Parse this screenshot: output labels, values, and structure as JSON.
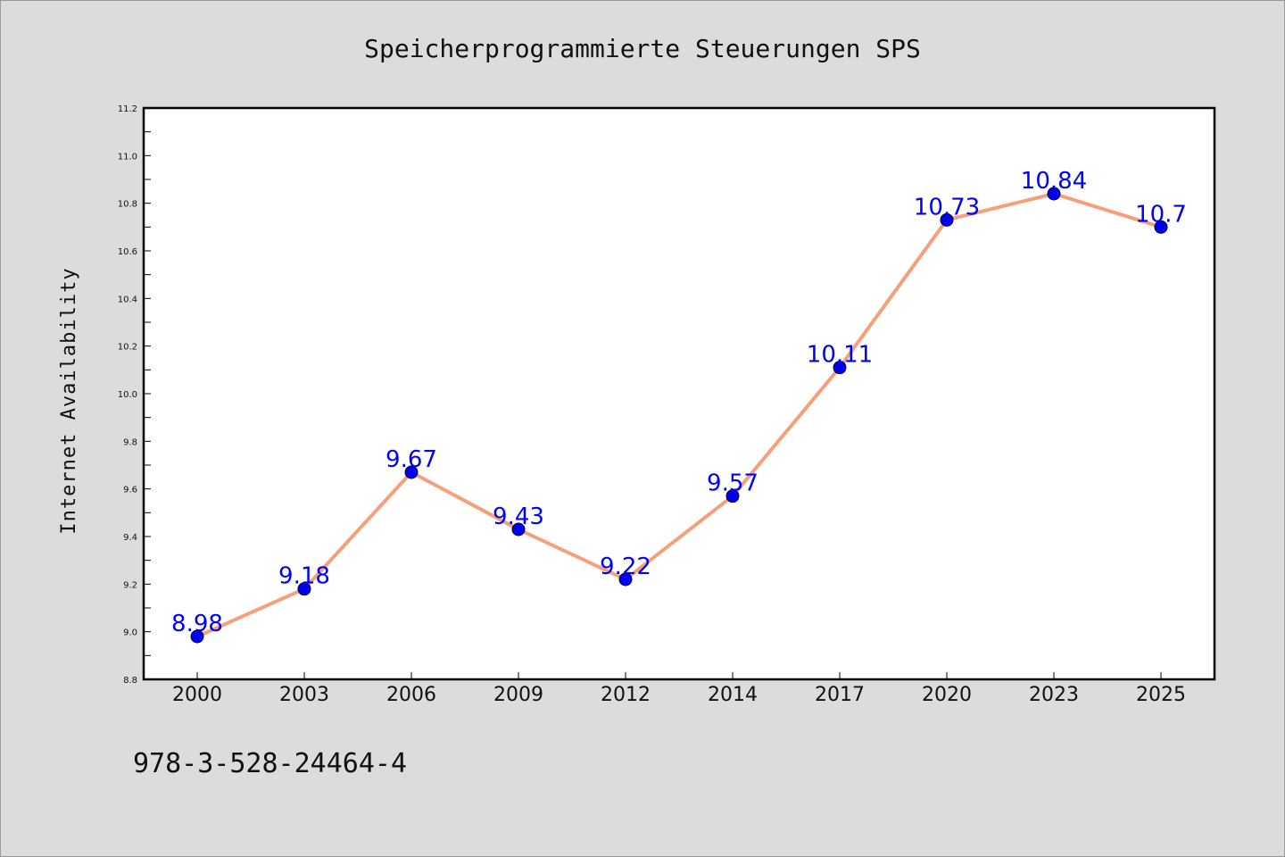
{
  "chart_data": {
    "type": "line",
    "title": "Speicherprogrammierte Steuerungen SPS",
    "xlabel": "",
    "ylabel": "Internet Availability",
    "categories": [
      "2000",
      "2003",
      "2006",
      "2009",
      "2012",
      "2014",
      "2017",
      "2020",
      "2023",
      "2025"
    ],
    "series": [
      {
        "values": [
          8.98,
          9.18,
          9.67,
          9.43,
          9.22,
          9.57,
          10.11,
          10.73,
          10.84,
          10.7
        ],
        "data_labels": [
          "8.98",
          "9.18",
          "9.67",
          "9.43",
          "9.22",
          "9.57",
          "10.11",
          "10.73",
          "10.84",
          "10.7"
        ]
      }
    ],
    "ylim": [
      8.8,
      11.2
    ],
    "y_ticks": [
      "8.8",
      "9.0",
      "9.2",
      "9.4",
      "9.6",
      "9.8",
      "10.0",
      "10.2",
      "10.4",
      "10.6",
      "10.8",
      "11.0",
      "11.2"
    ],
    "grid": false,
    "legend": "none",
    "colors": {
      "line": "#f5a07a",
      "marker": "#0000ee",
      "marker_edge": "#000033",
      "data_label": "#0000ff",
      "background": "#dcdcdc",
      "plot_background": "#ffffff"
    }
  },
  "footer": {
    "isbn": "978-3-528-24464-4"
  }
}
